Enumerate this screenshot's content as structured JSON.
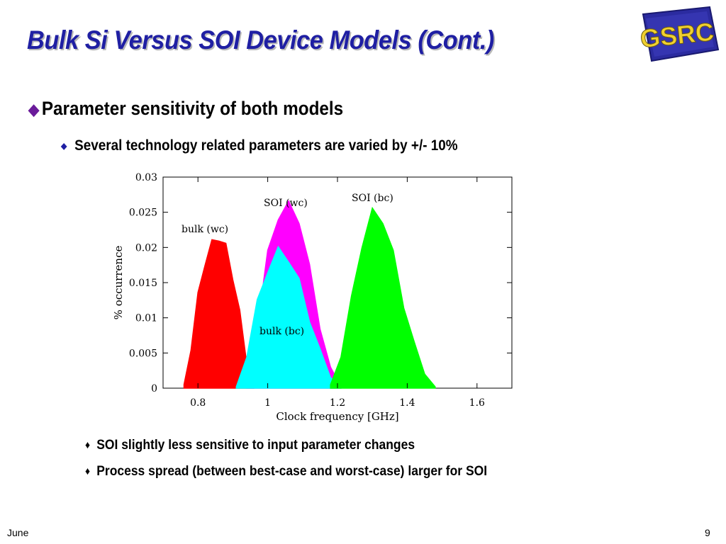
{
  "slide": {
    "title": "Bulk Si Versus SOI Device Models (Cont.)",
    "logo_text": "GSRC",
    "bullet_main": "Parameter sensitivity of both models",
    "bullet_sub": "Several technology related parameters are varied by +/- 10%",
    "findings": [
      "SOI slightly less sensitive to input parameter changes",
      "Process spread (between best-case and worst-case) larger for SOI"
    ],
    "footer_date": "June",
    "page_number": "9"
  },
  "colors": {
    "title": "#1f1fa3",
    "bulk_wc": "#ff0000",
    "bulk_bc": "#00ffff",
    "soi_wc": "#ff00ff",
    "soi_bc": "#00ff00"
  },
  "chart_data": {
    "type": "area",
    "xlabel": "Clock frequency [GHz]",
    "ylabel": "% occurrence",
    "xlim": [
      0.7,
      1.7
    ],
    "ylim": [
      0,
      0.03
    ],
    "xticks": [
      "0.8",
      "1",
      "1.2",
      "1.4",
      "1.6"
    ],
    "yticks": [
      "0",
      "0.005",
      "0.01",
      "0.015",
      "0.02",
      "0.025",
      "0.03"
    ],
    "grid": false,
    "series": [
      {
        "name": "bulk (wc)",
        "color": "#ff0000",
        "x": [
          0.76,
          0.78,
          0.8,
          0.82,
          0.84,
          0.86,
          0.88,
          0.9,
          0.92,
          0.94,
          0.96
        ],
        "y": [
          0.0005,
          0.006,
          0.013,
          0.018,
          0.0205,
          0.0215,
          0.02,
          0.016,
          0.0105,
          0.004,
          0.0005
        ]
      },
      {
        "name": "SOI (wc)",
        "color": "#ff00ff",
        "x": [
          0.94,
          0.97,
          1.0,
          1.03,
          1.06,
          1.09,
          1.12,
          1.15,
          1.18,
          1.21
        ],
        "y": [
          0.0005,
          0.009,
          0.019,
          0.0245,
          0.026,
          0.024,
          0.017,
          0.009,
          0.003,
          0.0002
        ]
      },
      {
        "name": "bulk (bc)",
        "color": "#00ffff",
        "x": [
          0.91,
          0.94,
          0.97,
          1.0,
          1.03,
          1.06,
          1.09,
          1.12,
          1.15,
          1.18,
          1.21
        ],
        "y": [
          0.0002,
          0.005,
          0.012,
          0.017,
          0.0195,
          0.0185,
          0.015,
          0.01,
          0.005,
          0.0015,
          0.0002
        ]
      },
      {
        "name": "SOI (bc)",
        "color": "#00ff00",
        "x": [
          1.18,
          1.21,
          1.24,
          1.27,
          1.3,
          1.33,
          1.36,
          1.39,
          1.42,
          1.45,
          1.48
        ],
        "y": [
          0.0005,
          0.005,
          0.0125,
          0.0205,
          0.025,
          0.024,
          0.019,
          0.012,
          0.006,
          0.002,
          0.0002
        ]
      }
    ]
  }
}
